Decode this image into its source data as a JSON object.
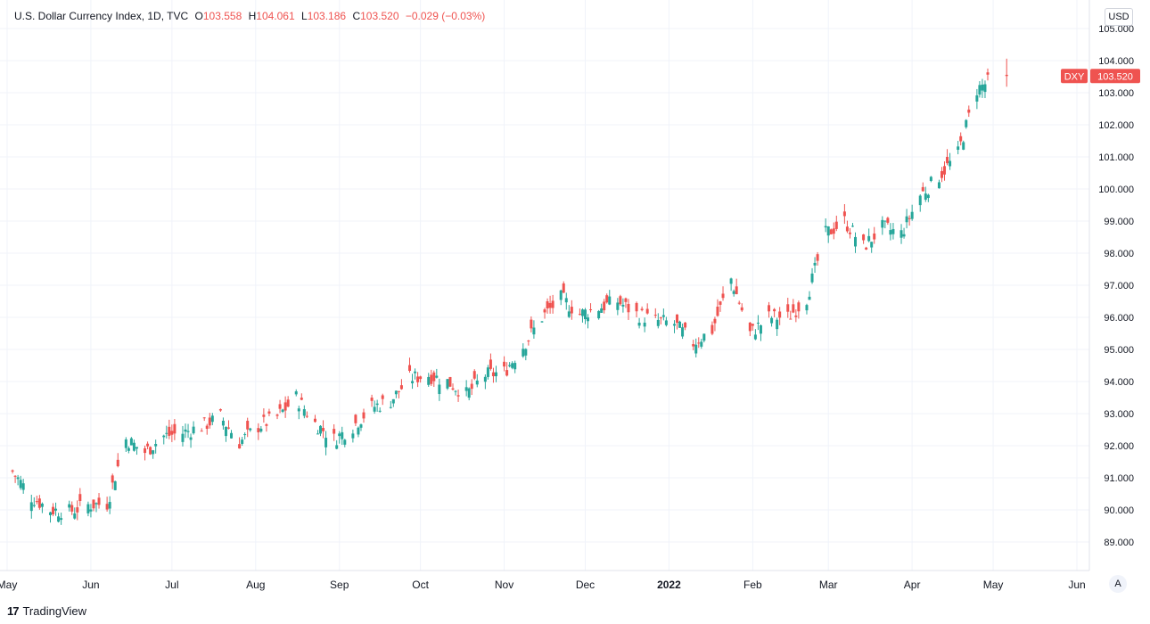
{
  "header": {
    "title": "U.S. Dollar Currency Index, 1D, TVC",
    "open_label": "O",
    "open": "103.558",
    "high_label": "H",
    "high": "104.061",
    "low_label": "L",
    "low": "103.186",
    "close_label": "C",
    "close": "103.520",
    "change": "−0.029 (−0.03%)"
  },
  "currency_button": "USD",
  "price_tag": {
    "symbol": "DXY",
    "value": "103.520"
  },
  "auto_button": "A",
  "brand": {
    "logo": "17",
    "name": "TradingView"
  },
  "colors": {
    "up": "#26a69a",
    "down": "#ef5350",
    "grid": "#f0f3fa",
    "text": "#131722"
  },
  "chart_data": {
    "type": "candlestick",
    "y_ticks": [
      "89.000",
      "90.000",
      "91.000",
      "92.000",
      "93.000",
      "94.000",
      "95.000",
      "96.000",
      "97.000",
      "98.000",
      "99.000",
      "100.000",
      "101.000",
      "102.000",
      "103.000",
      "104.000",
      "105.000"
    ],
    "x_ticks": [
      {
        "label": "May",
        "date": "2021-05-01"
      },
      {
        "label": "Jun",
        "date": "2021-06-01"
      },
      {
        "label": "Jul",
        "date": "2021-07-01"
      },
      {
        "label": "Aug",
        "date": "2021-08-01"
      },
      {
        "label": "Sep",
        "date": "2021-09-01"
      },
      {
        "label": "Oct",
        "date": "2021-10-01"
      },
      {
        "label": "Nov",
        "date": "2021-11-01"
      },
      {
        "label": "Dec",
        "date": "2021-12-01"
      },
      {
        "label": "2022",
        "date": "2022-01-01",
        "bold": true
      },
      {
        "label": "Feb",
        "date": "2022-02-01"
      },
      {
        "label": "Mar",
        "date": "2022-03-01"
      },
      {
        "label": "Apr",
        "date": "2022-04-01"
      },
      {
        "label": "May",
        "date": "2022-05-01"
      },
      {
        "label": "Jun",
        "date": "2022-06-01"
      }
    ],
    "xlim": [
      "2021-05-01",
      "2022-06-01"
    ],
    "ylim": [
      88.0,
      105.6
    ],
    "last_value": 103.52,
    "last_candle": {
      "date": "2022-05-06",
      "open": 103.558,
      "high": 104.061,
      "low": 103.186,
      "close": 103.52
    },
    "closes": [
      {
        "date": "2021-05-03",
        "close": 91.2
      },
      {
        "date": "2021-05-10",
        "close": 90.4
      },
      {
        "date": "2021-05-17",
        "close": 90.0
      },
      {
        "date": "2021-05-24",
        "close": 89.95
      },
      {
        "date": "2021-05-31",
        "close": 90.15
      },
      {
        "date": "2021-06-07",
        "close": 90.2
      },
      {
        "date": "2021-06-14",
        "close": 92.2
      },
      {
        "date": "2021-06-21",
        "close": 91.8
      },
      {
        "date": "2021-06-28",
        "close": 92.3
      },
      {
        "date": "2021-07-05",
        "close": 92.4
      },
      {
        "date": "2021-07-12",
        "close": 92.6
      },
      {
        "date": "2021-07-19",
        "close": 92.9
      },
      {
        "date": "2021-07-26",
        "close": 92.1
      },
      {
        "date": "2021-08-02",
        "close": 92.6
      },
      {
        "date": "2021-08-09",
        "close": 92.9
      },
      {
        "date": "2021-08-16",
        "close": 93.5
      },
      {
        "date": "2021-08-23",
        "close": 92.7
      },
      {
        "date": "2021-08-30",
        "close": 92.2
      },
      {
        "date": "2021-09-06",
        "close": 92.6
      },
      {
        "date": "2021-09-13",
        "close": 93.2
      },
      {
        "date": "2021-09-20",
        "close": 93.4
      },
      {
        "date": "2021-09-27",
        "close": 94.1
      },
      {
        "date": "2021-10-04",
        "close": 94.2
      },
      {
        "date": "2021-10-11",
        "close": 94.0
      },
      {
        "date": "2021-10-18",
        "close": 93.6
      },
      {
        "date": "2021-10-25",
        "close": 94.2
      },
      {
        "date": "2021-11-01",
        "close": 94.3
      },
      {
        "date": "2021-11-08",
        "close": 95.1
      },
      {
        "date": "2021-11-15",
        "close": 96.0
      },
      {
        "date": "2021-11-22",
        "close": 96.6
      },
      {
        "date": "2021-11-29",
        "close": 96.1
      },
      {
        "date": "2021-12-06",
        "close": 96.3
      },
      {
        "date": "2021-12-13",
        "close": 96.5
      },
      {
        "date": "2021-12-20",
        "close": 96.1
      },
      {
        "date": "2021-12-27",
        "close": 95.9
      },
      {
        "date": "2022-01-03",
        "close": 95.8
      },
      {
        "date": "2022-01-10",
        "close": 95.2
      },
      {
        "date": "2022-01-17",
        "close": 95.6
      },
      {
        "date": "2022-01-24",
        "close": 97.2
      },
      {
        "date": "2022-01-31",
        "close": 95.5
      },
      {
        "date": "2022-02-07",
        "close": 96.0
      },
      {
        "date": "2022-02-14",
        "close": 96.0
      },
      {
        "date": "2022-02-21",
        "close": 96.6
      },
      {
        "date": "2022-02-28",
        "close": 98.6
      },
      {
        "date": "2022-03-07",
        "close": 99.0
      },
      {
        "date": "2022-03-14",
        "close": 98.2
      },
      {
        "date": "2022-03-21",
        "close": 98.8
      },
      {
        "date": "2022-03-28",
        "close": 98.6
      },
      {
        "date": "2022-04-04",
        "close": 99.8
      },
      {
        "date": "2022-04-11",
        "close": 100.4
      },
      {
        "date": "2022-04-18",
        "close": 101.1
      },
      {
        "date": "2022-04-25",
        "close": 103.1
      },
      {
        "date": "2022-05-02",
        "close": 103.5
      }
    ]
  }
}
